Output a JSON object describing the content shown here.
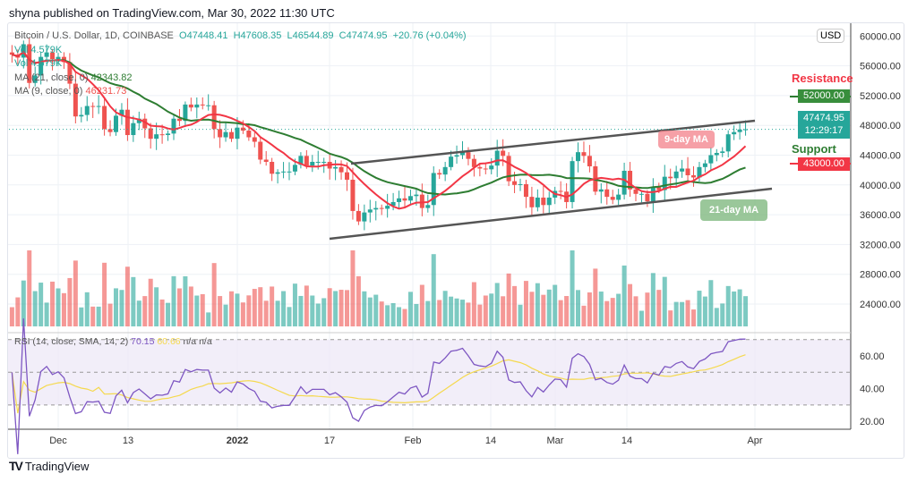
{
  "header": "shyna published on TradingView.com, Mar 30, 2022 11:30 UTC",
  "legend": {
    "symbol": "Bitcoin / U.S. Dollar, 1D, COINBASE",
    "o": "O47448.41",
    "h": "H47608.35",
    "l": "L46544.89",
    "c": "C47474.95",
    "chg": "+20.76 (+0.04%)",
    "vol1": "Vol 4.579K",
    "vol2": "Vol 4.579K",
    "ma21": "MA (21, close, 0)",
    "ma21v": "42343.82",
    "ma9": "MA (9, close, 0)",
    "ma9v": "46231.73"
  },
  "rsi_legend": {
    "label": "RSI (14, close, SMA, 14, 2)",
    "rsi": "70.15",
    "sma": "60.66",
    "na1": "n/a",
    "na2": "n/a"
  },
  "currency": "USD",
  "annotations": {
    "resistance": "Resistance",
    "resistance_price": "52000.00",
    "support": "Support",
    "support_price": "43000.00",
    "ma9": "9-day MA",
    "ma21": "21-day MA",
    "last_price": "47474.95",
    "countdown": "12:29:17"
  },
  "logo": "TradingView",
  "colors": {
    "up": "#26a69a",
    "down": "#ef5350",
    "ma9": "#f23645",
    "ma21": "#2e7d32",
    "rsi": "#7e57c2",
    "rsi_sma": "#f5d94e"
  },
  "chart_data": {
    "type": "candlestick",
    "start_date": "2021-11-23",
    "closes": [
      57500,
      57100,
      58900,
      53700,
      54700,
      57200,
      57800,
      56900,
      57200,
      56500,
      53600,
      49200,
      49400,
      50600,
      50500,
      50600,
      47500,
      47100,
      49300,
      50100,
      46700,
      48300,
      48900,
      47600,
      46200,
      46800,
      46700,
      46900,
      48900,
      48600,
      50800,
      50400,
      50800,
      50700,
      50700,
      47500,
      46400,
      47100,
      46200,
      47700,
      47300,
      46400,
      45800,
      43400,
      43100,
      41500,
      41700,
      41800,
      41800,
      42700,
      43900,
      42600,
      43100,
      43100,
      43100,
      42200,
      42400,
      41700,
      40700,
      36500,
      35100,
      36300,
      36700,
      36900,
      36800,
      37200,
      37700,
      38200,
      37900,
      38500,
      38700,
      36900,
      37300,
      41600,
      41400,
      42400,
      43800,
      44000,
      44400,
      43500,
      42400,
      42200,
      42100,
      42600,
      44600,
      43900,
      40500,
      40000,
      40100,
      38400,
      37000,
      38300,
      37300,
      38300,
      39200,
      39100,
      37700,
      43200,
      44400,
      43900,
      42500,
      39100,
      39400,
      38400,
      38000,
      38700,
      41900,
      39400,
      38800,
      38800,
      37800,
      39700,
      39300,
      41100,
      40900,
      41800,
      42200,
      41300,
      41000,
      42400,
      42900,
      44000,
      44300,
      44500,
      46800,
      47100,
      47448,
      47475
    ],
    "price_ticks": [
      "60000.00",
      "56000.00",
      "52000.00",
      "48000.00",
      "44000.00",
      "40000.00",
      "36000.00",
      "32000.00",
      "28000.00",
      "24000.00"
    ],
    "rsi_ticks": [
      "60.00",
      "40.00",
      "20.00"
    ],
    "x_ticks": [
      "Dec",
      "13",
      "2022",
      "17",
      "Feb",
      "14",
      "Mar",
      "14",
      "Apr"
    ],
    "ylim": [
      22000,
      61000
    ]
  }
}
